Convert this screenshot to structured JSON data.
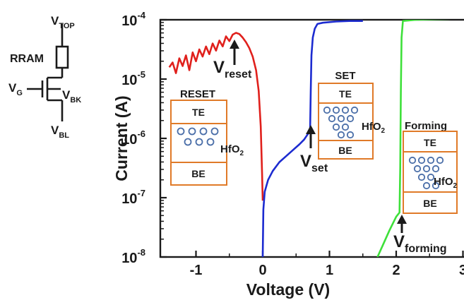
{
  "circuit": {
    "top_label": "V",
    "top_sub": "TOP",
    "rram_label": "RRAM",
    "gate_label": "V",
    "gate_sub": "G",
    "bulk_label": "V",
    "bulk_sub": "BK",
    "bottom_label": "V",
    "bottom_sub": "BL"
  },
  "chart_data": {
    "type": "line",
    "xlabel": "Voltage (V)",
    "ylabel": "Current (A)",
    "xlim": [
      -1.4,
      3.0
    ],
    "ylim_exponent": [
      -8,
      -4
    ],
    "y_scale": "log",
    "x_ticks": [
      "-1",
      "0",
      "1",
      "2",
      "3"
    ],
    "y_tick_base": "10",
    "y_tick_exponents": [
      "-4",
      "-5",
      "-6",
      "-7",
      "-8"
    ],
    "series": [
      {
        "name": "RESET",
        "color": "#e0201c",
        "points": [
          [
            -1.4,
            -4.8
          ],
          [
            -1.35,
            -4.72
          ],
          [
            -1.3,
            -4.9
          ],
          [
            -1.25,
            -4.65
          ],
          [
            -1.2,
            -4.78
          ],
          [
            -1.15,
            -4.6
          ],
          [
            -1.1,
            -4.85
          ],
          [
            -1.05,
            -4.55
          ],
          [
            -1.0,
            -4.7
          ],
          [
            -0.95,
            -4.5
          ],
          [
            -0.9,
            -4.62
          ],
          [
            -0.85,
            -4.45
          ],
          [
            -0.8,
            -4.58
          ],
          [
            -0.75,
            -4.4
          ],
          [
            -0.7,
            -4.52
          ],
          [
            -0.65,
            -4.35
          ],
          [
            -0.6,
            -4.45
          ],
          [
            -0.55,
            -4.28
          ],
          [
            -0.5,
            -4.36
          ],
          [
            -0.45,
            -4.25
          ],
          [
            -0.4,
            -4.22
          ],
          [
            -0.35,
            -4.24
          ],
          [
            -0.3,
            -4.3
          ],
          [
            -0.25,
            -4.38
          ],
          [
            -0.2,
            -4.48
          ],
          [
            -0.15,
            -4.62
          ],
          [
            -0.1,
            -4.85
          ],
          [
            -0.06,
            -5.2
          ],
          [
            -0.03,
            -5.8
          ],
          [
            -0.01,
            -6.6
          ],
          [
            0.0,
            -7.05
          ]
        ]
      },
      {
        "name": "SET",
        "color": "#1c2bd0",
        "points": [
          [
            0.0,
            -8.0
          ],
          [
            0.01,
            -7.2
          ],
          [
            0.03,
            -6.9
          ],
          [
            0.08,
            -6.7
          ],
          [
            0.15,
            -6.55
          ],
          [
            0.25,
            -6.4
          ],
          [
            0.35,
            -6.3
          ],
          [
            0.45,
            -6.2
          ],
          [
            0.55,
            -6.1
          ],
          [
            0.62,
            -6.02
          ],
          [
            0.68,
            -5.92
          ],
          [
            0.71,
            -5.85
          ],
          [
            0.72,
            -5.2
          ],
          [
            0.73,
            -4.6
          ],
          [
            0.75,
            -4.3
          ],
          [
            0.78,
            -4.15
          ],
          [
            0.82,
            -4.07
          ],
          [
            0.9,
            -4.05
          ],
          [
            1.1,
            -4.03
          ],
          [
            1.3,
            -4.02
          ],
          [
            1.5,
            -4.02
          ]
        ]
      },
      {
        "name": "Forming",
        "color": "#3ee03a",
        "points": [
          [
            1.72,
            -8.0
          ],
          [
            1.8,
            -7.8
          ],
          [
            1.9,
            -7.55
          ],
          [
            2.0,
            -7.32
          ],
          [
            2.05,
            -7.25
          ],
          [
            2.06,
            -6.5
          ],
          [
            2.07,
            -5.2
          ],
          [
            2.08,
            -4.3
          ],
          [
            2.1,
            -4.02
          ],
          [
            2.3,
            -4.0
          ],
          [
            2.6,
            -3.99
          ],
          [
            3.0,
            -3.98
          ]
        ]
      }
    ],
    "annotations": {
      "v_reset": {
        "main": "V",
        "sub": "reset",
        "x": -0.38,
        "y": -4.27
      },
      "v_set": {
        "main": "V",
        "sub": "set",
        "x": 0.73,
        "y": -5.92
      },
      "v_forming": {
        "main": "V",
        "sub": "forming",
        "x": 2.05,
        "y": -7.25
      }
    },
    "insets": [
      {
        "title": "RESET",
        "title_color": "#e0201c",
        "top": "TE",
        "bottom": "BE",
        "oxide": "HfO",
        "oxide_sub": "2"
      },
      {
        "title": "SET",
        "title_color": "#1c2bd0",
        "top": "TE",
        "bottom": "BE",
        "oxide": "HfO",
        "oxide_sub": "2"
      },
      {
        "title": "Forming",
        "title_color": "#3ee03a",
        "top": "TE",
        "bottom": "BE",
        "oxide": "HfO",
        "oxide_sub": "2"
      }
    ]
  }
}
